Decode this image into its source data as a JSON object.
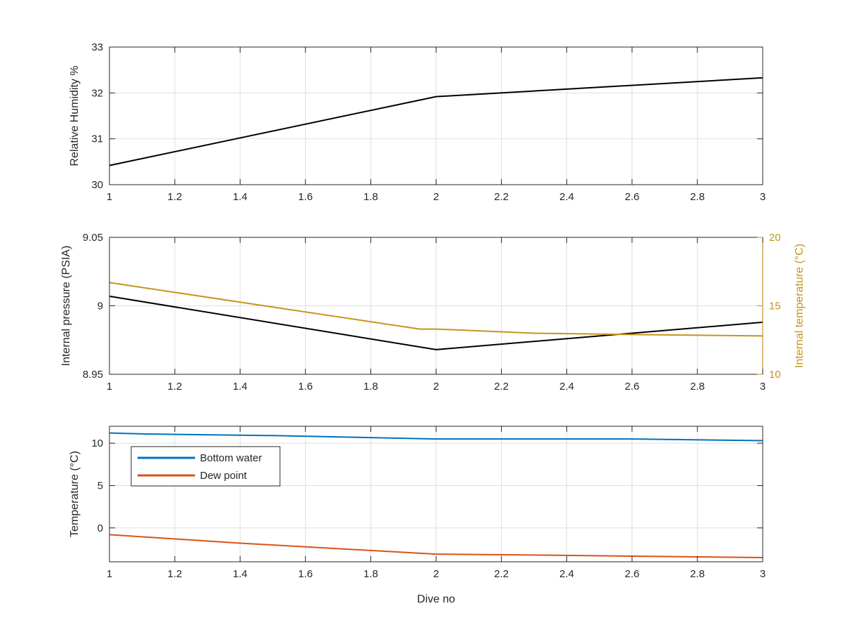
{
  "chart_data": [
    {
      "type": "line",
      "ylabel": "Relative Humidity %",
      "xlim": [
        1,
        3
      ],
      "ylim": [
        30,
        33
      ],
      "xticks": [
        1,
        1.2,
        1.4,
        1.6,
        1.8,
        2,
        2.2,
        2.4,
        2.6,
        2.8,
        3
      ],
      "yticks": [
        30,
        31,
        32,
        33
      ],
      "grid": true,
      "series": [
        {
          "x": [
            1,
            2,
            3
          ],
          "y": [
            30.42,
            31.92,
            32.33
          ],
          "color": "#000000"
        }
      ]
    },
    {
      "type": "line",
      "ylabel": "Internal pressure (PSIA)",
      "y2label": "Internal temperature (°C)",
      "xlim": [
        1,
        3
      ],
      "ylim": [
        8.95,
        9.05
      ],
      "y2lim": [
        10,
        20
      ],
      "xticks": [
        1,
        1.2,
        1.4,
        1.6,
        1.8,
        2,
        2.2,
        2.4,
        2.6,
        2.8,
        3
      ],
      "yticks": [
        8.95,
        9,
        9.05
      ],
      "y2ticks": [
        10,
        15,
        20
      ],
      "grid": true,
      "series": [
        {
          "axis": "left",
          "x": [
            1,
            2,
            3
          ],
          "y": [
            9.007,
            8.968,
            8.988
          ],
          "color": "#000000"
        },
        {
          "axis": "right",
          "x": [
            1,
            1.95,
            2,
            2.3,
            2.6,
            3
          ],
          "y": [
            16.7,
            13.3,
            13.3,
            13.0,
            12.9,
            12.8
          ],
          "color": "#C4951C"
        }
      ]
    },
    {
      "type": "line",
      "ylabel": "Temperature (°C)",
      "xlabel": "Dive no",
      "xlim": [
        1,
        3
      ],
      "ylim": [
        -4,
        12
      ],
      "xticks": [
        1,
        1.2,
        1.4,
        1.6,
        1.8,
        2,
        2.2,
        2.4,
        2.6,
        2.8,
        3
      ],
      "yticks": [
        0,
        5,
        10
      ],
      "grid": true,
      "legend": "top-left",
      "series": [
        {
          "name": "Bottom water",
          "x": [
            1,
            1.1,
            1.5,
            2,
            2.6,
            3
          ],
          "y": [
            11.2,
            11.1,
            10.9,
            10.5,
            10.5,
            10.3
          ],
          "color": "#0072BD"
        },
        {
          "name": "Dew point",
          "x": [
            1,
            1.4,
            2,
            2.3,
            3
          ],
          "y": [
            -0.8,
            -1.8,
            -3.1,
            -3.2,
            -3.5
          ],
          "color": "#D95319"
        }
      ]
    }
  ]
}
